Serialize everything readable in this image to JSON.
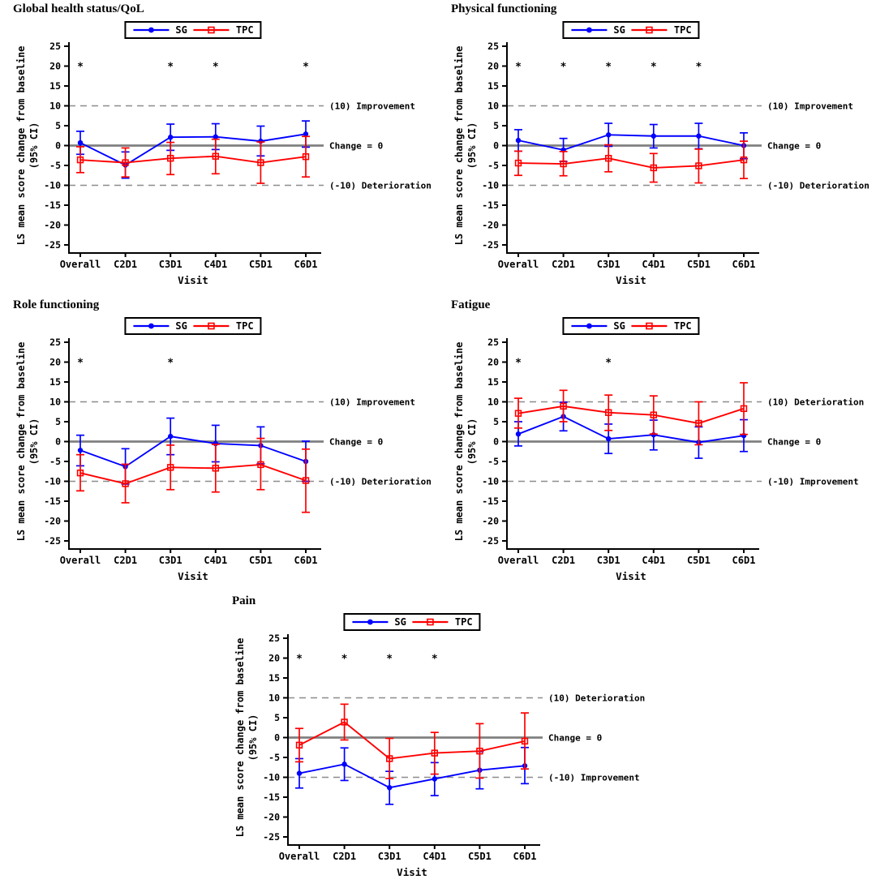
{
  "figure_name": "Patient-reported outcomes: LS mean score change from baseline",
  "accent_colors": {
    "sg": "#0000ff",
    "tpc": "#ff0000",
    "refline_gray": "#8c8c8c",
    "zero_line_gray": "#808080"
  },
  "chart_data": [
    {
      "type": "line",
      "title": "Global health status/QoL",
      "xlabel": "Visit",
      "ylabel_lines": [
        "LS mean score change from baseline",
        "(95% CI)"
      ],
      "ylim": [
        -25,
        25
      ],
      "ytick_step": 5,
      "grid": false,
      "legend_position": "top-center",
      "categories": [
        "Overall",
        "C2D1",
        "C3D1",
        "C4D1",
        "C5D1",
        "C6D1"
      ],
      "reflines": [
        {
          "y": 10,
          "style": "dashed",
          "label": "(10) Improvement"
        },
        {
          "y": 0,
          "style": "solid",
          "label": "Change = 0"
        },
        {
          "y": -10,
          "style": "dashed",
          "label": "(-10) Deterioration"
        }
      ],
      "sig_marker": "*",
      "sig_y": 20,
      "significant_visits": [
        "Overall",
        "C3D1",
        "C4D1",
        "C6D1"
      ],
      "series": [
        {
          "name": "SG",
          "color": "#0000ff",
          "marker": "filled-circle",
          "values": [
            0.7,
            -4.9,
            2.1,
            2.2,
            1.1,
            2.9
          ],
          "ci_low": [
            -2.2,
            -8.2,
            -1.2,
            -1.0,
            -2.6,
            -0.4
          ],
          "ci_high": [
            3.6,
            -1.6,
            5.4,
            5.5,
            4.9,
            6.2
          ]
        },
        {
          "name": "TPC",
          "color": "#ff0000",
          "marker": "open-square",
          "values": [
            -3.6,
            -4.3,
            -3.2,
            -2.7,
            -4.3,
            -2.8
          ],
          "ci_low": [
            -6.8,
            -7.9,
            -7.3,
            -7.1,
            -9.5,
            -7.9
          ],
          "ci_high": [
            -0.3,
            -0.6,
            0.8,
            1.6,
            0.9,
            2.3
          ]
        }
      ]
    },
    {
      "type": "line",
      "title": "Physical functioning",
      "xlabel": "Visit",
      "ylabel_lines": [
        "LS mean score change from baseline",
        "(95% CI)"
      ],
      "ylim": [
        -25,
        25
      ],
      "ytick_step": 5,
      "grid": false,
      "legend_position": "top-center",
      "categories": [
        "Overall",
        "C2D1",
        "C3D1",
        "C4D1",
        "C5D1",
        "C6D1"
      ],
      "reflines": [
        {
          "y": 10,
          "style": "dashed",
          "label": "(10) Improvement"
        },
        {
          "y": 0,
          "style": "solid",
          "label": "Change = 0"
        },
        {
          "y": -10,
          "style": "dashed",
          "label": "(-10) Deterioration"
        }
      ],
      "sig_marker": "*",
      "sig_y": 20,
      "significant_visits": [
        "Overall",
        "C2D1",
        "C3D1",
        "C4D1",
        "C5D1"
      ],
      "series": [
        {
          "name": "SG",
          "color": "#0000ff",
          "marker": "filled-circle",
          "values": [
            1.3,
            -1.1,
            2.7,
            2.4,
            2.4,
            0.0
          ],
          "ci_low": [
            -1.4,
            -4.0,
            -0.2,
            -0.6,
            -0.8,
            -3.3
          ],
          "ci_high": [
            4.0,
            1.8,
            5.6,
            5.3,
            5.6,
            3.2
          ]
        },
        {
          "name": "TPC",
          "color": "#ff0000",
          "marker": "open-square",
          "values": [
            -4.4,
            -4.6,
            -3.2,
            -5.6,
            -5.1,
            -3.6
          ],
          "ci_low": [
            -7.5,
            -7.6,
            -6.6,
            -9.2,
            -9.4,
            -8.3
          ],
          "ci_high": [
            -1.4,
            -1.5,
            0.2,
            -2.0,
            -0.9,
            1.1
          ]
        }
      ]
    },
    {
      "type": "line",
      "title": "Role functioning",
      "xlabel": "Visit",
      "ylabel_lines": [
        "LS mean score change from baseline",
        "(95% CI)"
      ],
      "ylim": [
        -25,
        25
      ],
      "ytick_step": 5,
      "grid": false,
      "legend_position": "top-center",
      "categories": [
        "Overall",
        "C2D1",
        "C3D1",
        "C4D1",
        "C5D1",
        "C6D1"
      ],
      "reflines": [
        {
          "y": 10,
          "style": "dashed",
          "label": "(10) Improvement"
        },
        {
          "y": 0,
          "style": "solid",
          "label": "Change = 0"
        },
        {
          "y": -10,
          "style": "dashed",
          "label": "(-10) Deterioration"
        }
      ],
      "sig_marker": "*",
      "sig_y": 20,
      "significant_visits": [
        "Overall",
        "C3D1"
      ],
      "series": [
        {
          "name": "SG",
          "color": "#0000ff",
          "marker": "filled-circle",
          "values": [
            -2.2,
            -6.3,
            1.3,
            -0.5,
            -1.0,
            -5.0
          ],
          "ci_low": [
            -6.1,
            -10.7,
            -3.3,
            -5.1,
            -5.6,
            -10.0
          ],
          "ci_high": [
            1.6,
            -1.8,
            5.9,
            4.1,
            3.7,
            0.1
          ]
        },
        {
          "name": "TPC",
          "color": "#ff0000",
          "marker": "open-square",
          "values": [
            -7.9,
            -10.6,
            -6.5,
            -6.7,
            -5.8,
            -9.8
          ],
          "ci_low": [
            -12.4,
            -15.4,
            -12.1,
            -12.7,
            -12.1,
            -17.8
          ],
          "ci_high": [
            -3.3,
            -5.7,
            -0.9,
            -0.7,
            0.8,
            -1.9
          ]
        }
      ]
    },
    {
      "type": "line",
      "title": "Fatigue",
      "xlabel": "Visit",
      "ylabel_lines": [
        "LS mean score change from baseline",
        "(95% CI)"
      ],
      "ylim": [
        -25,
        25
      ],
      "ytick_step": 5,
      "grid": false,
      "legend_position": "top-center",
      "categories": [
        "Overall",
        "C2D1",
        "C3D1",
        "C4D1",
        "C5D1",
        "C6D1"
      ],
      "reflines": [
        {
          "y": 10,
          "style": "dashed",
          "label": "(10) Deterioration"
        },
        {
          "y": 0,
          "style": "solid",
          "label": "Change = 0"
        },
        {
          "y": -10,
          "style": "dashed",
          "label": "(-10) Improvement"
        }
      ],
      "sig_marker": "*",
      "sig_y": 20,
      "significant_visits": [
        "Overall",
        "C3D1"
      ],
      "series": [
        {
          "name": "SG",
          "color": "#0000ff",
          "marker": "filled-circle",
          "values": [
            1.9,
            6.3,
            0.7,
            1.7,
            -0.2,
            1.5
          ],
          "ci_low": [
            -1.1,
            2.7,
            -3.0,
            -2.1,
            -4.2,
            -2.5
          ],
          "ci_high": [
            5.0,
            9.9,
            4.4,
            5.4,
            3.7,
            5.5
          ]
        },
        {
          "name": "TPC",
          "color": "#ff0000",
          "marker": "open-square",
          "values": [
            7.1,
            8.9,
            7.3,
            6.7,
            4.6,
            8.3
          ],
          "ci_low": [
            3.4,
            5.0,
            2.8,
            1.9,
            -0.8,
            1.8
          ],
          "ci_high": [
            10.9,
            12.9,
            11.7,
            11.5,
            10.0,
            14.8
          ]
        }
      ]
    },
    {
      "type": "line",
      "title": "Pain",
      "xlabel": "Visit",
      "ylabel_lines": [
        "LS mean score change from baseline",
        "(95% CI)"
      ],
      "ylim": [
        -25,
        25
      ],
      "ytick_step": 5,
      "grid": false,
      "legend_position": "top-center",
      "categories": [
        "Overall",
        "C2D1",
        "C3D1",
        "C4D1",
        "C5D1",
        "C6D1"
      ],
      "reflines": [
        {
          "y": 10,
          "style": "dashed",
          "label": "(10) Deterioration"
        },
        {
          "y": 0,
          "style": "solid",
          "label": "Change = 0"
        },
        {
          "y": -10,
          "style": "dashed",
          "label": "(-10) Improvement"
        }
      ],
      "sig_marker": "*",
      "sig_y": 20,
      "significant_visits": [
        "Overall",
        "C2D1",
        "C3D1",
        "C4D1"
      ],
      "series": [
        {
          "name": "SG",
          "color": "#0000ff",
          "marker": "filled-circle",
          "values": [
            -9.0,
            -6.7,
            -12.6,
            -10.4,
            -8.2,
            -7.1
          ],
          "ci_low": [
            -12.7,
            -10.8,
            -16.8,
            -14.6,
            -12.9,
            -11.6
          ],
          "ci_high": [
            -5.3,
            -2.6,
            -8.5,
            -6.3,
            -3.5,
            -2.5
          ]
        },
        {
          "name": "TPC",
          "color": "#ff0000",
          "marker": "open-square",
          "values": [
            -1.9,
            3.9,
            -5.3,
            -3.9,
            -3.4,
            -0.9
          ],
          "ci_low": [
            -6.1,
            -0.6,
            -10.3,
            -9.2,
            -10.2,
            -7.9
          ],
          "ci_high": [
            2.3,
            8.4,
            -0.2,
            1.3,
            3.5,
            6.2
          ]
        }
      ]
    }
  ]
}
